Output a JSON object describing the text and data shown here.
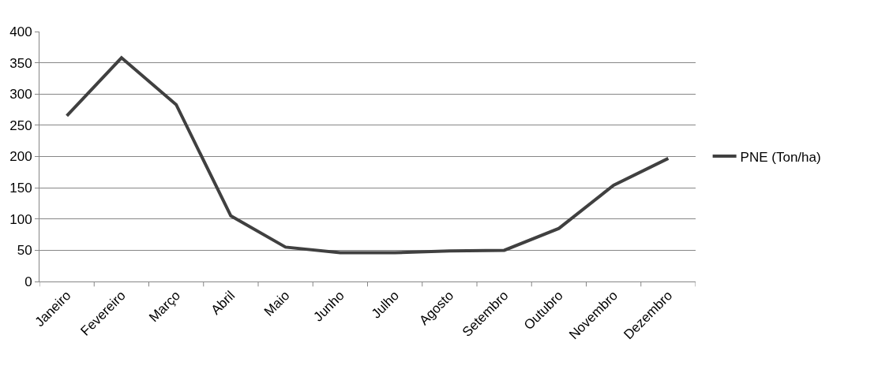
{
  "chart_data": {
    "type": "line",
    "categories": [
      "Janeiro",
      "Fevereiro",
      "Março",
      "Abril",
      "Maio",
      "Junho",
      "Julho",
      "Agosto",
      "Setembro",
      "Outubro",
      "Novembro",
      "Dezembro"
    ],
    "series": [
      {
        "name": "PNE (Ton/ha)",
        "color": "#404040",
        "values": [
          265,
          358,
          283,
          105,
          55,
          46,
          46,
          49,
          50,
          85,
          154,
          197
        ]
      }
    ],
    "ylim": [
      0,
      400
    ],
    "yticks": [
      0,
      50,
      100,
      150,
      200,
      250,
      300,
      350,
      400
    ],
    "grid": "y",
    "legend": "right",
    "marker": "none",
    "line_style": "solid"
  }
}
